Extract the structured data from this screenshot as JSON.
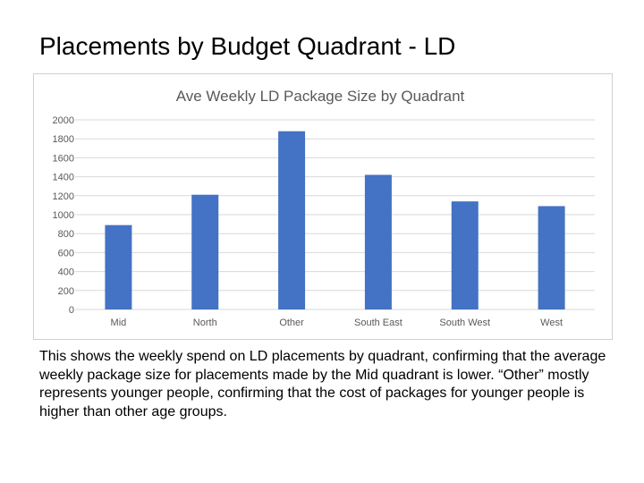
{
  "slide": {
    "title": "Placements by Budget Quadrant - LD",
    "body": "This shows the weekly spend on LD placements by quadrant, confirming that the average weekly package size for placements made by the Mid quadrant is lower. “Other” mostly represents younger people, confirming that the cost of packages for younger people is higher than other age groups."
  },
  "chart_data": {
    "type": "bar",
    "title": "Ave Weekly LD Package Size by Quadrant",
    "categories": [
      "Mid",
      "North",
      "Other",
      "South East",
      "South West",
      "West"
    ],
    "values": [
      890,
      1210,
      1880,
      1420,
      1140,
      1090
    ],
    "yticks": [
      0,
      200,
      400,
      600,
      800,
      1000,
      1200,
      1400,
      1600,
      1800,
      2000
    ],
    "ylim": [
      0,
      2000
    ],
    "xlabel": "",
    "ylabel": "",
    "grid": true,
    "legend": "none",
    "colors": {
      "bar": "#4472C4",
      "grid": "#d9d9d9",
      "text": "#595959"
    }
  }
}
